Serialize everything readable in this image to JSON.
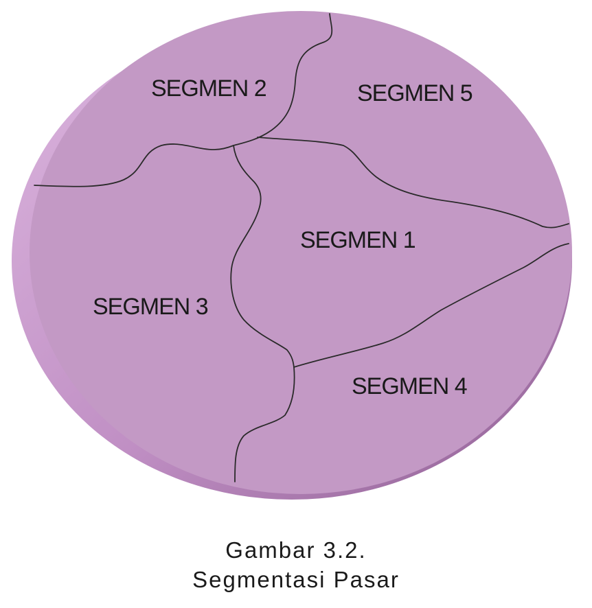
{
  "diagram": {
    "segments": [
      {
        "id": "segment-1",
        "label": "SEGMEN 1"
      },
      {
        "id": "segment-2",
        "label": "SEGMEN 2"
      },
      {
        "id": "segment-3",
        "label": "SEGMEN 3"
      },
      {
        "id": "segment-4",
        "label": "SEGMEN 4"
      },
      {
        "id": "segment-5",
        "label": "SEGMEN 5"
      }
    ],
    "colors": {
      "disc_face": "#c399c5",
      "disc_edge_light": "#d9b2dc",
      "disc_edge_shadow": "#9e6fa2",
      "borders": "#2a2a2a"
    }
  },
  "caption": {
    "line1": "Gambar 3.2.",
    "line2": "Segmentasi Pasar"
  }
}
